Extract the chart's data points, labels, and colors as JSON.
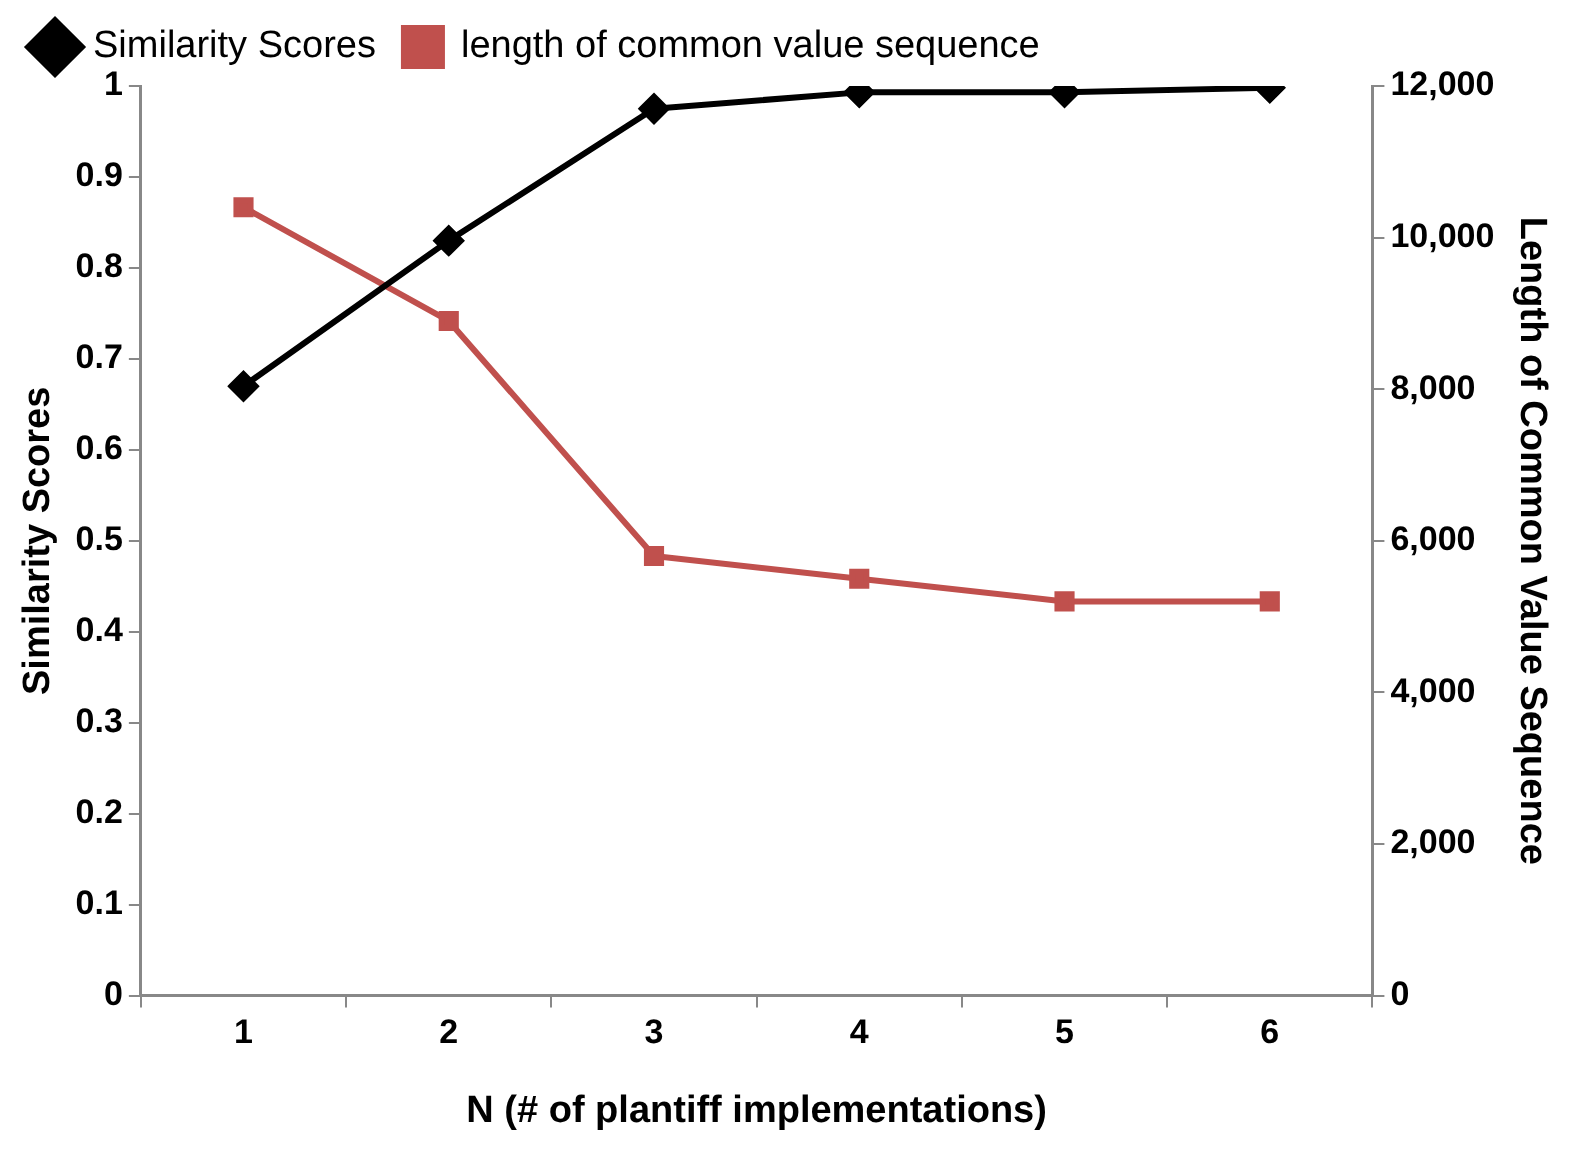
{
  "chart_data": {
    "type": "line",
    "categories": [
      "1",
      "2",
      "3",
      "4",
      "5",
      "6"
    ],
    "xlabel": "N (# of plantiff implementations)",
    "ylabel": "Similarity Scores",
    "y2label": "Length of Common Value Sequence",
    "ylim": [
      0,
      1
    ],
    "yticks": [
      0,
      0.1,
      0.2,
      0.3,
      0.4,
      0.5,
      0.6,
      0.7,
      0.8,
      0.9,
      1
    ],
    "y2lim": [
      0,
      12000
    ],
    "y2ticks": [
      {
        "value": 0,
        "label": "0"
      },
      {
        "value": 2000,
        "label": "2,000"
      },
      {
        "value": 4000,
        "label": "4,000"
      },
      {
        "value": 6000,
        "label": "6,000"
      },
      {
        "value": 8000,
        "label": "8,000"
      },
      {
        "value": 10000,
        "label": "10,000"
      },
      {
        "value": 12000,
        "label": "12,000"
      }
    ],
    "grid": false,
    "legend": "top left",
    "line_style": "solid",
    "series": [
      {
        "name": "Similarity Scores",
        "color": "#000000",
        "marker": "diamond",
        "values": [
          0.67,
          0.83,
          0.975,
          0.993,
          0.993,
          0.998
        ]
      },
      {
        "name": "length of common value sequence",
        "color": "#c0504d",
        "marker": "square",
        "axis": "y2",
        "values": [
          10400,
          8900,
          5800,
          5500,
          5200,
          5200
        ]
      }
    ]
  }
}
